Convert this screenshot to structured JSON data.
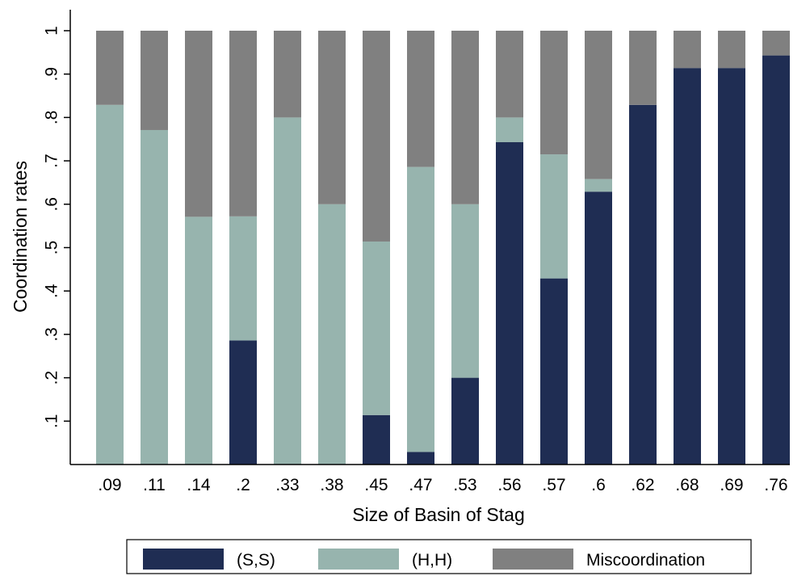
{
  "chart_data": {
    "type": "bar",
    "stacked": true,
    "categories": [
      ".09",
      ".11",
      ".14",
      ".2",
      ".33",
      ".38",
      ".45",
      ".47",
      ".53",
      ".56",
      ".57",
      ".6",
      ".62",
      ".68",
      ".69",
      ".76"
    ],
    "series": [
      {
        "name": "(S,S)",
        "color": "#1f2d53",
        "values": [
          0,
          0,
          0,
          0.286,
          0,
          0,
          0.114,
          0.029,
          0.2,
          0.743,
          0.429,
          0.629,
          0.829,
          0.914,
          0.914,
          0.943
        ]
      },
      {
        "name": "(H,H)",
        "color": "#97b4ae",
        "values": [
          0.829,
          0.771,
          0.571,
          0.286,
          0.8,
          0.6,
          0.4,
          0.657,
          0.4,
          0.057,
          0.286,
          0.029,
          0,
          0,
          0,
          0
        ]
      },
      {
        "name": "Miscoordination",
        "color": "#808080",
        "values": [
          0.171,
          0.229,
          0.429,
          0.428,
          0.2,
          0.4,
          0.486,
          0.314,
          0.4,
          0.2,
          0.285,
          0.342,
          0.171,
          0.086,
          0.086,
          0.057
        ]
      }
    ],
    "xlabel": "Size of Basin of Stag",
    "ylabel": "Coordination rates",
    "ylim": [
      0,
      1
    ],
    "yticks": [
      0.1,
      0.2,
      0.3,
      0.4,
      0.5,
      0.6,
      0.7,
      0.8,
      0.9,
      1
    ],
    "ytick_labels": [
      ".1",
      ".2",
      ".3",
      ".4",
      ".5",
      ".6",
      ".7",
      ".8",
      ".9",
      "1"
    ],
    "grid": false,
    "legend": "bottom"
  }
}
